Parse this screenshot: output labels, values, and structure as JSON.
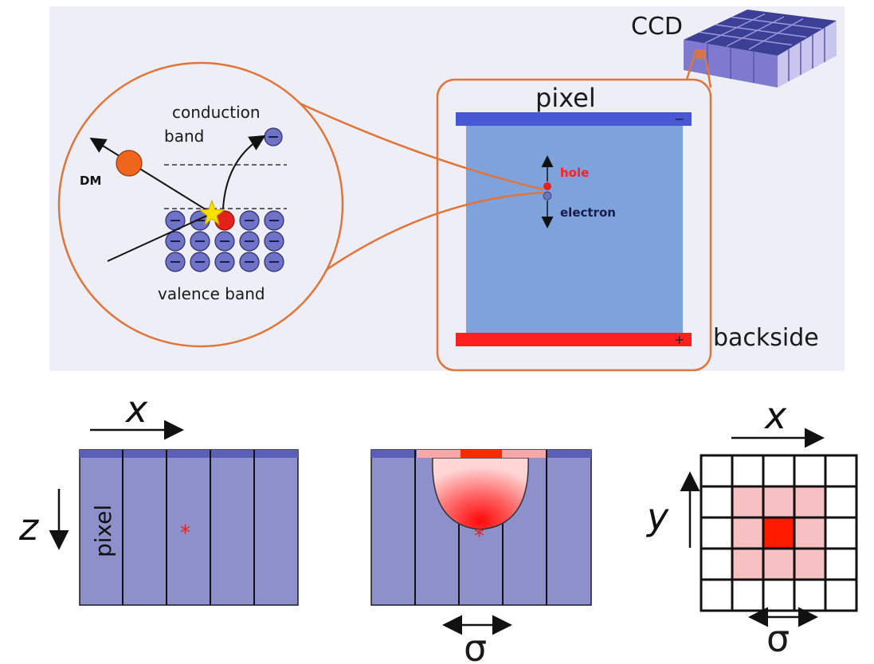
{
  "top_panel": {
    "ccd_label": "CCD",
    "pixel_label": "pixel",
    "backside_label": "backside",
    "minus_sign": "−",
    "plus_sign": "+",
    "hole_label": "hole",
    "electron_label": "electron",
    "conduction_label_line1": "conduction",
    "conduction_label_line2": "band",
    "valence_label": "valence band",
    "dm_label": "DM",
    "electron_symbol": "⊖"
  },
  "bottom_panel": {
    "left": {
      "x_axis": "x",
      "z_axis": "z",
      "pixel_label": "pixel",
      "star": "*"
    },
    "middle": {
      "sigma": "σ",
      "star": "*"
    },
    "right": {
      "x_axis": "x",
      "y_axis": "y",
      "sigma": "σ"
    }
  },
  "colors": {
    "panel_bg": "#eeeff6",
    "ring": "#e0743a",
    "pixel_fill": "#7ea2dc",
    "top_electrode": "#4757d6",
    "back_electrode": "#ff2020",
    "bead": "#6f73c8",
    "dm": "#f0651c",
    "hole": "#e0221a",
    "ccd_dark": "#3b3f95",
    "ccd_light": "#c8c6ee",
    "col_fill": "#8e90cc",
    "grid_pink": "#f7c1c3",
    "grid_red": "#ff1a00"
  }
}
